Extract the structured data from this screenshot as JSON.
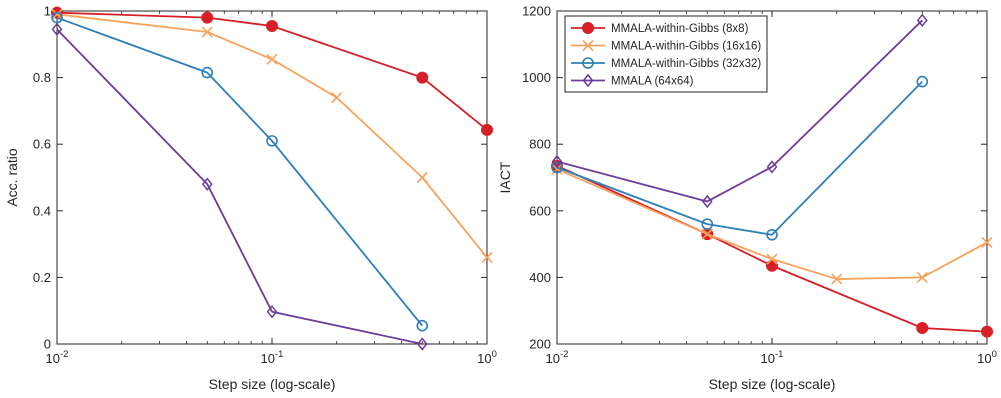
{
  "chart_data": [
    {
      "type": "line",
      "xscale": "log",
      "xlim": [
        0.01,
        1
      ],
      "ylim": [
        0,
        1
      ],
      "xlabel": "Step size (log-scale)",
      "ylabel": "Acc. ratio",
      "xticks": [
        {
          "value": 0.01,
          "base": "10",
          "exp": "-2"
        },
        {
          "value": 0.1,
          "base": "10",
          "exp": "-1"
        },
        {
          "value": 1,
          "base": "10",
          "exp": "0"
        }
      ],
      "yticks": [
        {
          "value": 0,
          "label": "0"
        },
        {
          "value": 0.2,
          "label": "0.2"
        },
        {
          "value": 0.4,
          "label": "0.4"
        },
        {
          "value": 0.6,
          "label": "0.6"
        },
        {
          "value": 0.8,
          "label": "0.8"
        },
        {
          "value": 1,
          "label": "1"
        }
      ],
      "grid": false,
      "legend": null,
      "series": [
        {
          "name": "MMALA-within-Gibbs (8x8)",
          "color": "#d62027",
          "marker": "filled-circle",
          "x": [
            0.01,
            0.05,
            0.1,
            0.5,
            1
          ],
          "y": [
            0.995,
            0.98,
            0.955,
            0.8,
            0.643
          ]
        },
        {
          "name": "MMALA-within-Gibbs (16x16)",
          "color": "#f7a35c",
          "marker": "x",
          "x": [
            0.01,
            0.05,
            0.1,
            0.2,
            0.5,
            1
          ],
          "y": [
            0.99,
            0.937,
            0.855,
            0.74,
            0.5,
            0.26
          ]
        },
        {
          "name": "MMALA-within-Gibbs (32x32)",
          "color": "#2f7fb8",
          "marker": "open-circle",
          "x": [
            0.01,
            0.05,
            0.1,
            0.5
          ],
          "y": [
            0.98,
            0.815,
            0.61,
            0.055
          ]
        },
        {
          "name": "MMALA (64x64)",
          "color": "#6a3d9a",
          "marker": "diamond",
          "x": [
            0.01,
            0.05,
            0.1,
            0.5
          ],
          "y": [
            0.945,
            0.48,
            0.097,
            0.0
          ]
        }
      ]
    },
    {
      "type": "line",
      "xscale": "log",
      "xlim": [
        0.01,
        1
      ],
      "ylim": [
        200,
        1200
      ],
      "xlabel": "Step size (log-scale)",
      "ylabel": "IACT",
      "xticks": [
        {
          "value": 0.01,
          "base": "10",
          "exp": "-2"
        },
        {
          "value": 0.1,
          "base": "10",
          "exp": "-1"
        },
        {
          "value": 1,
          "base": "10",
          "exp": "0"
        }
      ],
      "yticks": [
        {
          "value": 200,
          "label": "200"
        },
        {
          "value": 400,
          "label": "400"
        },
        {
          "value": 600,
          "label": "600"
        },
        {
          "value": 800,
          "label": "800"
        },
        {
          "value": 1000,
          "label": "1000"
        },
        {
          "value": 1200,
          "label": "1200"
        }
      ],
      "grid": false,
      "legend": "top-left",
      "series": [
        {
          "name": "MMALA-within-Gibbs (8x8)",
          "color": "#d62027",
          "marker": "filled-circle",
          "x": [
            0.01,
            0.05,
            0.1,
            0.5,
            1
          ],
          "y": [
            735,
            530,
            435,
            248,
            237
          ]
        },
        {
          "name": "MMALA-within-Gibbs (16x16)",
          "color": "#f7a35c",
          "marker": "x",
          "x": [
            0.01,
            0.05,
            0.1,
            0.2,
            0.5,
            1
          ],
          "y": [
            725,
            530,
            455,
            395,
            400,
            505
          ]
        },
        {
          "name": "MMALA-within-Gibbs (32x32)",
          "color": "#2f7fb8",
          "marker": "open-circle",
          "x": [
            0.01,
            0.05,
            0.1,
            0.5
          ],
          "y": [
            730,
            560,
            528,
            988
          ]
        },
        {
          "name": "MMALA (64x64)",
          "color": "#6a3d9a",
          "marker": "diamond",
          "x": [
            0.01,
            0.05,
            0.1,
            0.5
          ],
          "y": [
            748,
            628,
            732,
            1172
          ]
        }
      ]
    }
  ]
}
